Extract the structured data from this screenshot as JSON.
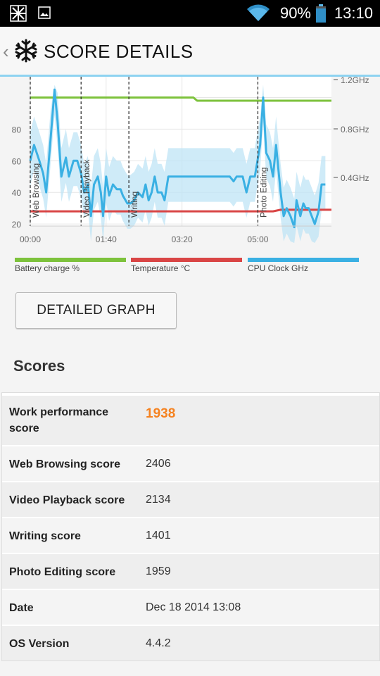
{
  "status_bar": {
    "battery_percent": "90%",
    "time": "13:10",
    "icons": [
      "snowflake-icon",
      "image-icon",
      "wifi-icon",
      "battery-icon"
    ]
  },
  "action_bar": {
    "title": "SCORE DETAILS",
    "icons": [
      "back-chevron-icon",
      "snowflake-app-icon"
    ]
  },
  "chart_data": {
    "type": "line",
    "x_ticks": [
      "00:00",
      "01:40",
      "03:20",
      "05:00"
    ],
    "y_ticks_left": [
      "20",
      "40",
      "60",
      "80"
    ],
    "y_ticks_right": [
      "1.2GHz",
      "0.8GHz",
      "0.4GHz"
    ],
    "markers": [
      {
        "label": "Web Browsing",
        "t": 0
      },
      {
        "label": "Video Playback",
        "t": 67
      },
      {
        "label": "Writing",
        "t": 130
      },
      {
        "label": "Photo Editing",
        "t": 300
      }
    ],
    "series": [
      {
        "name": "Battery charge %",
        "color": "#7dc23c",
        "points": [
          [
            0,
            100
          ],
          [
            215,
            100
          ],
          [
            220,
            98
          ],
          [
            397,
            98
          ]
        ]
      },
      {
        "name": "Temperature °C",
        "color": "#d94545",
        "points": [
          [
            0,
            28
          ],
          [
            320,
            28
          ],
          [
            330,
            29
          ],
          [
            397,
            29
          ]
        ]
      },
      {
        "name": "CPU Clock GHz",
        "color": "#3ab0e3",
        "points": [
          [
            0,
            60
          ],
          [
            5,
            70
          ],
          [
            12,
            60
          ],
          [
            17,
            52
          ],
          [
            21,
            40
          ],
          [
            27,
            75
          ],
          [
            32,
            105
          ],
          [
            36,
            85
          ],
          [
            41,
            50
          ],
          [
            47,
            62
          ],
          [
            51,
            50
          ],
          [
            57,
            60
          ],
          [
            62,
            60
          ],
          [
            67,
            52
          ],
          [
            71,
            40
          ],
          [
            76,
            45
          ],
          [
            80,
            25
          ],
          [
            84,
            45
          ],
          [
            89,
            50
          ],
          [
            93,
            40
          ],
          [
            96,
            25
          ],
          [
            100,
            50
          ],
          [
            104,
            38
          ],
          [
            109,
            45
          ],
          [
            114,
            42
          ],
          [
            119,
            42
          ],
          [
            122,
            38
          ],
          [
            128,
            33
          ],
          [
            132,
            33
          ],
          [
            137,
            35
          ],
          [
            142,
            40
          ],
          [
            148,
            37
          ],
          [
            152,
            45
          ],
          [
            156,
            35
          ],
          [
            160,
            40
          ],
          [
            164,
            50
          ],
          [
            168,
            40
          ],
          [
            173,
            40
          ],
          [
            177,
            35
          ],
          [
            182,
            50
          ],
          [
            220,
            50
          ],
          [
            263,
            50
          ],
          [
            268,
            47
          ],
          [
            272,
            50
          ],
          [
            280,
            50
          ],
          [
            285,
            40
          ],
          [
            290,
            50
          ],
          [
            296,
            50
          ],
          [
            303,
            70
          ],
          [
            307,
            100
          ],
          [
            311,
            65
          ],
          [
            316,
            60
          ],
          [
            320,
            50
          ],
          [
            324,
            70
          ],
          [
            330,
            40
          ],
          [
            334,
            25
          ],
          [
            338,
            30
          ],
          [
            343,
            25
          ],
          [
            348,
            18
          ],
          [
            351,
            35
          ],
          [
            356,
            25
          ],
          [
            360,
            33
          ],
          [
            363,
            30
          ],
          [
            367,
            30
          ],
          [
            371,
            25
          ],
          [
            375,
            20
          ],
          [
            380,
            28
          ],
          [
            384,
            45
          ],
          [
            389,
            45
          ]
        ]
      }
    ]
  },
  "detailed_graph_button": "DETAILED GRAPH",
  "scores_title": "Scores",
  "scores": [
    {
      "label": "Work performance score",
      "value": "1938"
    },
    {
      "label": "Web Browsing score",
      "value": "2406"
    },
    {
      "label": "Video Playback score",
      "value": "2134"
    },
    {
      "label": "Writing score",
      "value": "1401"
    },
    {
      "label": "Photo Editing score",
      "value": "1959"
    },
    {
      "label": "Date",
      "value": "Dec 18 2014 13:08"
    },
    {
      "label": "OS Version",
      "value": "4.4.2"
    }
  ]
}
